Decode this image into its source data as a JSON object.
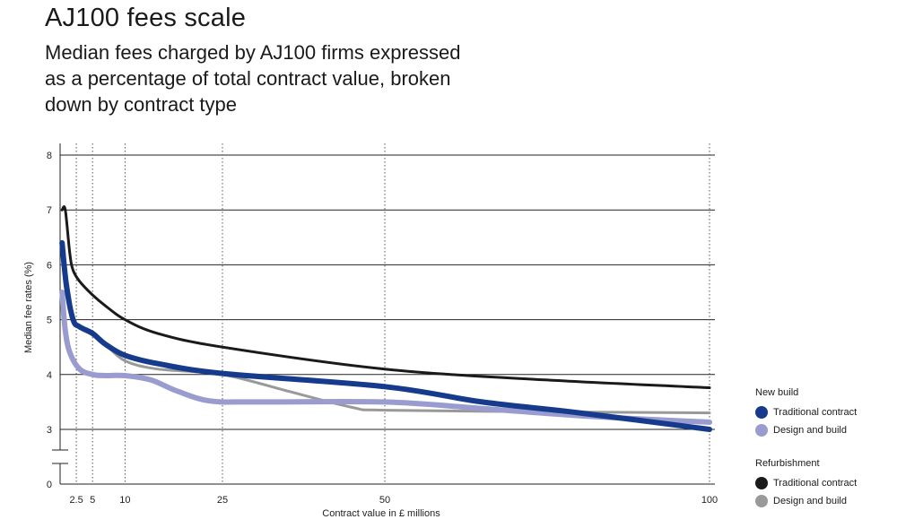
{
  "title": "AJ100 fees scale",
  "subtitle": "Median fees charged by AJ100 firms expressed as a percentage of total contract value, broken down by contract type",
  "legend": {
    "groups": [
      {
        "title": "New build",
        "items": [
          {
            "label": "Traditional contract",
            "color": "#163a8c"
          },
          {
            "label": "Design and build",
            "color": "#9a9cd0"
          }
        ]
      },
      {
        "title": "Refurbishment",
        "items": [
          {
            "label": "Traditional contract",
            "color": "#1a1a1a"
          },
          {
            "label": "Design and build",
            "color": "#999999"
          }
        ]
      }
    ]
  },
  "chart_data": {
    "type": "line",
    "xlabel": "Contract value in £ millions",
    "ylabel": "Median fee rates (%)",
    "xlim": [
      0,
      100
    ],
    "ylim": [
      0,
      8
    ],
    "y_axis_break": true,
    "x_ticks": [
      2.5,
      5,
      10,
      25,
      50,
      100
    ],
    "y_ticks": [
      0,
      3,
      4,
      5,
      6,
      7,
      8
    ],
    "grid": "horizontal solid lines at y ticks, vertical dotted lines at x ticks",
    "legend_position": "right",
    "series": [
      {
        "name": "Traditional contract",
        "group": "New build",
        "color": "#163a8c",
        "points": [
          [
            0.3,
            6.4
          ],
          [
            1,
            5.6
          ],
          [
            2,
            5.0
          ],
          [
            3,
            4.87
          ],
          [
            5,
            4.75
          ],
          [
            7,
            4.55
          ],
          [
            10,
            4.35
          ],
          [
            15,
            4.2
          ],
          [
            25,
            4.02
          ],
          [
            50,
            3.78
          ],
          [
            65,
            3.5
          ],
          [
            80,
            3.3
          ],
          [
            100,
            3.0
          ]
        ]
      },
      {
        "name": "Design and build",
        "group": "New build",
        "color": "#9a9cd0",
        "points": [
          [
            0.3,
            5.5
          ],
          [
            0.8,
            4.8
          ],
          [
            1.5,
            4.4
          ],
          [
            3,
            4.1
          ],
          [
            5,
            4.0
          ],
          [
            7,
            3.98
          ],
          [
            10,
            3.98
          ],
          [
            14,
            3.9
          ],
          [
            18,
            3.7
          ],
          [
            23,
            3.52
          ],
          [
            30,
            3.5
          ],
          [
            50,
            3.5
          ],
          [
            65,
            3.38
          ],
          [
            80,
            3.25
          ],
          [
            100,
            3.13
          ]
        ]
      },
      {
        "name": "Traditional contract",
        "group": "Refurbishment",
        "color": "#1a1a1a",
        "points": [
          [
            0.3,
            7.0
          ],
          [
            0.8,
            7.0
          ],
          [
            1.5,
            6.2
          ],
          [
            2,
            5.9
          ],
          [
            3,
            5.7
          ],
          [
            5,
            5.45
          ],
          [
            7,
            5.25
          ],
          [
            10,
            5.0
          ],
          [
            15,
            4.75
          ],
          [
            25,
            4.5
          ],
          [
            50,
            4.1
          ],
          [
            75,
            3.9
          ],
          [
            100,
            3.76
          ]
        ]
      },
      {
        "name": "Design and build",
        "group": "Refurbishment",
        "color": "#999999",
        "points": [
          [
            0.3,
            6.0
          ],
          [
            0.8,
            5.9
          ],
          [
            1.5,
            5.4
          ],
          [
            2,
            5.0
          ],
          [
            3,
            4.85
          ],
          [
            5,
            4.72
          ],
          [
            7,
            4.55
          ],
          [
            10,
            4.25
          ],
          [
            15,
            4.1
          ],
          [
            25,
            4.0
          ],
          [
            35,
            3.7
          ],
          [
            45,
            3.4
          ],
          [
            50,
            3.35
          ],
          [
            75,
            3.32
          ],
          [
            100,
            3.3
          ]
        ]
      }
    ]
  }
}
